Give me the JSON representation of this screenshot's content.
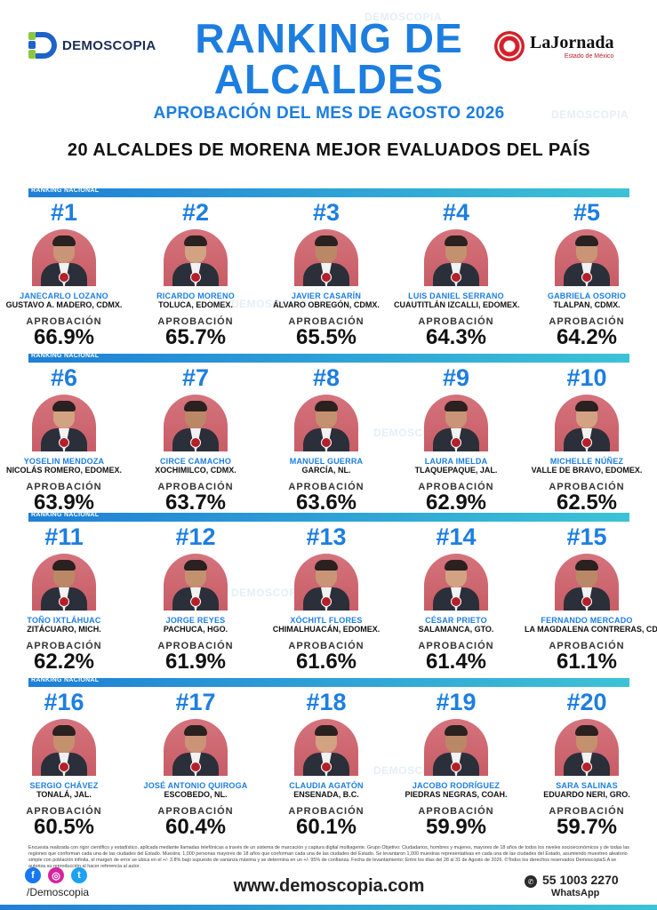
{
  "header": {
    "brand_left": "DEMOSCOPIA",
    "brand_right": "LaJornada",
    "brand_right_sub": "Estado de México",
    "title_line1": "RANKING DE",
    "title_line2": "ALCALDES",
    "subtitle": "APROBACIÓN DEL MES DE AGOSTO 2026",
    "heading": "20 ALCALDES DE MORENA MEJOR EVALUADOS DEL PAÍS"
  },
  "ribbon_label": "RANKING NACIONAL",
  "approval_label": "APROBACIÓN",
  "watermark": "DEMOSCOPIA",
  "rows": [
    [
      {
        "rank": "#1",
        "name": "JANECARLO LOZANO",
        "place": "GUSTAVO A. MADERO, CDMX.",
        "approval": "66.9%"
      },
      {
        "rank": "#2",
        "name": "RICARDO MORENO",
        "place": "TOLUCA, EDOMEX.",
        "approval": "65.7%"
      },
      {
        "rank": "#3",
        "name": "JAVIER CASARÍN",
        "place": "ÁLVARO OBREGÓN, CDMX.",
        "approval": "65.5%"
      },
      {
        "rank": "#4",
        "name": "LUIS DANIEL SERRANO",
        "place": "CUAUTITLÁN IZCALLI, EDOMEX.",
        "approval": "64.3%"
      },
      {
        "rank": "#5",
        "name": "GABRIELA OSORIO",
        "place": "TLALPAN, CDMX.",
        "approval": "64.2%"
      }
    ],
    [
      {
        "rank": "#6",
        "name": "YOSELIN MENDOZA",
        "place": "NICOLÁS ROMERO, EDOMEX.",
        "approval": "63.9%"
      },
      {
        "rank": "#7",
        "name": "CIRCE CAMACHO",
        "place": "XOCHIMILCO, CDMX.",
        "approval": "63.7%"
      },
      {
        "rank": "#8",
        "name": "MANUEL GUERRA",
        "place": "GARCÍA, NL.",
        "approval": "63.6%"
      },
      {
        "rank": "#9",
        "name": "LAURA IMELDA",
        "place": "TLAQUEPAQUE, JAL.",
        "approval": "62.9%"
      },
      {
        "rank": "#10",
        "name": "MICHELLE NÚÑEZ",
        "place": "VALLE DE BRAVO, EDOMEX.",
        "approval": "62.5%"
      }
    ],
    [
      {
        "rank": "#11",
        "name": "TOÑO IXTLÁHUAC",
        "place": "ZITÁCUARO, MICH.",
        "approval": "62.2%"
      },
      {
        "rank": "#12",
        "name": "JORGE REYES",
        "place": "PACHUCA, HGO.",
        "approval": "61.9%"
      },
      {
        "rank": "#13",
        "name": "XÓCHITL FLORES",
        "place": "CHIMALHUACÁN, EDOMEX.",
        "approval": "61.6%"
      },
      {
        "rank": "#14",
        "name": "CÉSAR PRIETO",
        "place": "SALAMANCA, GTO.",
        "approval": "61.4%"
      },
      {
        "rank": "#15",
        "name": "FERNANDO MERCADO",
        "place": "LA MAGDALENA CONTRERAS, CDMX.",
        "approval": "61.1%"
      }
    ],
    [
      {
        "rank": "#16",
        "name": "SERGIO CHÁVEZ",
        "place": "TONALÁ, JAL.",
        "approval": "60.5%"
      },
      {
        "rank": "#17",
        "name": "JOSÉ ANTONIO QUIROGA",
        "place": "ESCOBEDO, NL.",
        "approval": "60.4%"
      },
      {
        "rank": "#18",
        "name": "CLAUDIA AGATÓN",
        "place": "ENSENADA, B.C.",
        "approval": "60.1%"
      },
      {
        "rank": "#19",
        "name": "JACOBO RODRÍGUEZ",
        "place": "PIEDRAS NEGRAS, COAH.",
        "approval": "59.9%"
      },
      {
        "rank": "#20",
        "name": "SARA SALINAS",
        "place": "EDUARDO NERI, GRO.",
        "approval": "59.7%"
      }
    ]
  ],
  "footer": {
    "note": "Encuesta realizada con rigor científico y estadístico, aplicada mediante llamadas telefónicas a través de un sistema de marcación y captura digital multiagente. Grupo Objetivo: Ciudadanos, hombres y mujeres, mayores de 18 años de todos los niveles socioeconómicos y de todas las regiones que conforman cada una de las ciudades del Estado. Muestra: 1,000 personas mayores de 18 años que conforman cada una de las ciudades del Estado. Se levantaron 1,000 muestras representativas en cada una de las ciudades del Estado, asumiendo muestreo aleatorio simple con población infinita, el margen de error se ubica en el +/- 3.8% bajo supuesto de varianza máxima y se determina en un +/- 95% de confianza. Fecha de levantamiento: Entre los días del 28 al 31 de Agosto de 2026. ©Todos los derechos reservados DemoscopiaS.A se autoriza su reproducción al hacer referencia al autor.",
    "handle": "/Demoscopia",
    "website": "www.demoscopia.com",
    "phone": "55 1003 2270",
    "whatsapp": "WhatsApp",
    "social": [
      "f",
      "◎",
      "t"
    ]
  }
}
